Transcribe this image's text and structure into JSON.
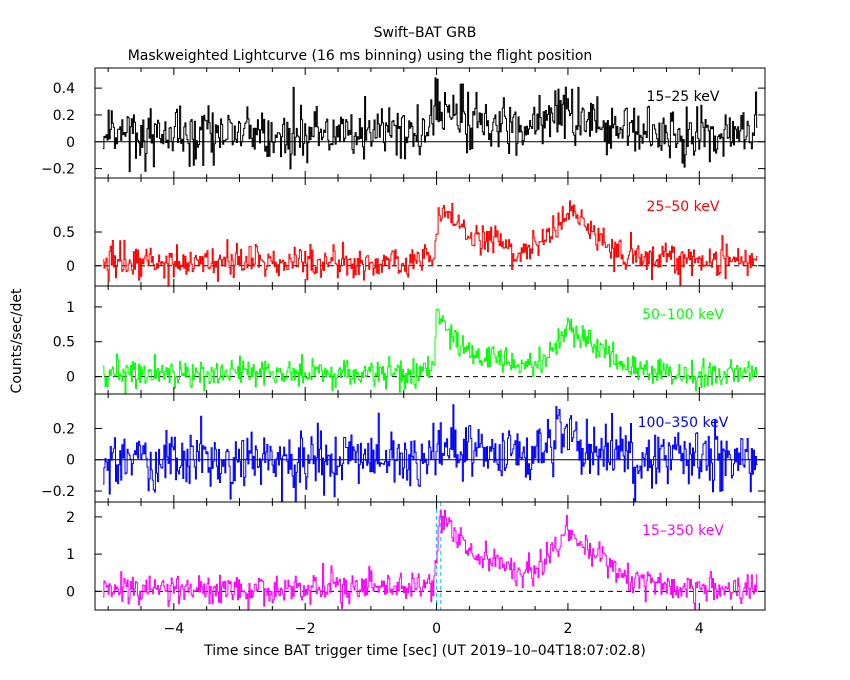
{
  "chart_data": {
    "type": "line",
    "title": "Swift–BAT GRB",
    "subtitle": "Maskweighted Lightcurve (16 ms binning) using the flight position",
    "xlabel": "Time since BAT trigger time [sec] (UT 2019–10–04T18:07:02.8)",
    "ylabel": "Counts/sec/det",
    "xlim": [
      -5.2,
      5.0
    ],
    "xticks": [
      -4,
      -2,
      0,
      2,
      4
    ],
    "xtick_labels": [
      "−4",
      "−2",
      "0",
      "2",
      "4"
    ],
    "bin_width_s": 0.016,
    "trigger_markers": [
      0.0,
      0.064
    ],
    "panels": [
      {
        "name": "15–25 keV",
        "color": "#000000",
        "ylim": [
          -0.27,
          0.55
        ],
        "yticks": [
          -0.2,
          0,
          0.2,
          0.4
        ],
        "ytick_labels": [
          "−0.2",
          "0",
          "0.2",
          "0.4"
        ],
        "zero_line": "solid",
        "shape": [
          [
            -5.1,
            0.05
          ],
          [
            -0.3,
            0.05
          ],
          [
            -0.05,
            0.1
          ],
          [
            0.0,
            0.3
          ],
          [
            0.2,
            0.22
          ],
          [
            0.5,
            0.15
          ],
          [
            1.0,
            0.1
          ],
          [
            1.5,
            0.12
          ],
          [
            1.8,
            0.2
          ],
          [
            2.0,
            0.25
          ],
          [
            2.3,
            0.15
          ],
          [
            2.8,
            0.1
          ],
          [
            3.5,
            0.07
          ],
          [
            4.9,
            0.05
          ]
        ],
        "noise": 0.1
      },
      {
        "name": "25–50 keV",
        "color": "#ff0000",
        "ylim": [
          -0.3,
          1.3
        ],
        "yticks": [
          0,
          0.5
        ],
        "ytick_labels": [
          "0",
          "0.5"
        ],
        "zero_line": "dashed",
        "shape": [
          [
            -5.1,
            0.05
          ],
          [
            -0.3,
            0.05
          ],
          [
            -0.05,
            0.1
          ],
          [
            0.05,
            0.85
          ],
          [
            0.15,
            0.8
          ],
          [
            0.3,
            0.55
          ],
          [
            0.6,
            0.4
          ],
          [
            0.9,
            0.35
          ],
          [
            1.2,
            0.2
          ],
          [
            1.5,
            0.25
          ],
          [
            1.8,
            0.55
          ],
          [
            2.0,
            0.85
          ],
          [
            2.2,
            0.65
          ],
          [
            2.5,
            0.4
          ],
          [
            2.8,
            0.2
          ],
          [
            3.2,
            0.1
          ],
          [
            4.9,
            0.05
          ]
        ],
        "noise": 0.12
      },
      {
        "name": "50–100 keV",
        "color": "#00ff00",
        "ylim": [
          -0.25,
          1.3
        ],
        "yticks": [
          0,
          0.5,
          1
        ],
        "ytick_labels": [
          "0",
          "0.5",
          "1"
        ],
        "zero_line": "dashed",
        "shape": [
          [
            -5.1,
            0.05
          ],
          [
            -0.3,
            0.05
          ],
          [
            -0.05,
            0.1
          ],
          [
            0.0,
            1.0
          ],
          [
            0.1,
            0.75
          ],
          [
            0.3,
            0.5
          ],
          [
            0.6,
            0.3
          ],
          [
            0.9,
            0.3
          ],
          [
            1.2,
            0.15
          ],
          [
            1.5,
            0.2
          ],
          [
            1.8,
            0.45
          ],
          [
            2.0,
            0.75
          ],
          [
            2.2,
            0.55
          ],
          [
            2.5,
            0.4
          ],
          [
            2.8,
            0.15
          ],
          [
            3.2,
            0.05
          ],
          [
            4.9,
            0.05
          ]
        ],
        "noise": 0.1
      },
      {
        "name": "100–350 keV",
        "color": "#0000ff",
        "ylim": [
          -0.27,
          0.42
        ],
        "yticks": [
          -0.2,
          0,
          0.2
        ],
        "ytick_labels": [
          "−0.2",
          "0",
          "0.2"
        ],
        "zero_line": "solid",
        "shape": [
          [
            -5.1,
            0.0
          ],
          [
            -0.2,
            0.0
          ],
          [
            0.0,
            0.15
          ],
          [
            0.3,
            0.08
          ],
          [
            0.8,
            0.05
          ],
          [
            1.5,
            0.05
          ],
          [
            1.9,
            0.15
          ],
          [
            2.2,
            0.08
          ],
          [
            2.8,
            0.02
          ],
          [
            4.9,
            0.0
          ]
        ],
        "noise": 0.1
      },
      {
        "name": "15–350 keV",
        "color": "#ff00ff",
        "ylim": [
          -0.5,
          2.4
        ],
        "yticks": [
          0,
          1,
          2
        ],
        "ytick_labels": [
          "0",
          "1",
          "2"
        ],
        "zero_line": "dashed",
        "shape": [
          [
            -5.1,
            0.05
          ],
          [
            -0.3,
            0.1
          ],
          [
            -0.05,
            0.3
          ],
          [
            0.05,
            2.0
          ],
          [
            0.2,
            1.8
          ],
          [
            0.4,
            1.3
          ],
          [
            0.6,
            0.9
          ],
          [
            0.9,
            0.8
          ],
          [
            1.2,
            0.45
          ],
          [
            1.5,
            0.55
          ],
          [
            1.8,
            1.2
          ],
          [
            2.0,
            1.7
          ],
          [
            2.2,
            1.3
          ],
          [
            2.5,
            1.0
          ],
          [
            2.8,
            0.4
          ],
          [
            3.2,
            0.15
          ],
          [
            4.9,
            0.1
          ]
        ],
        "noise": 0.2
      }
    ]
  }
}
